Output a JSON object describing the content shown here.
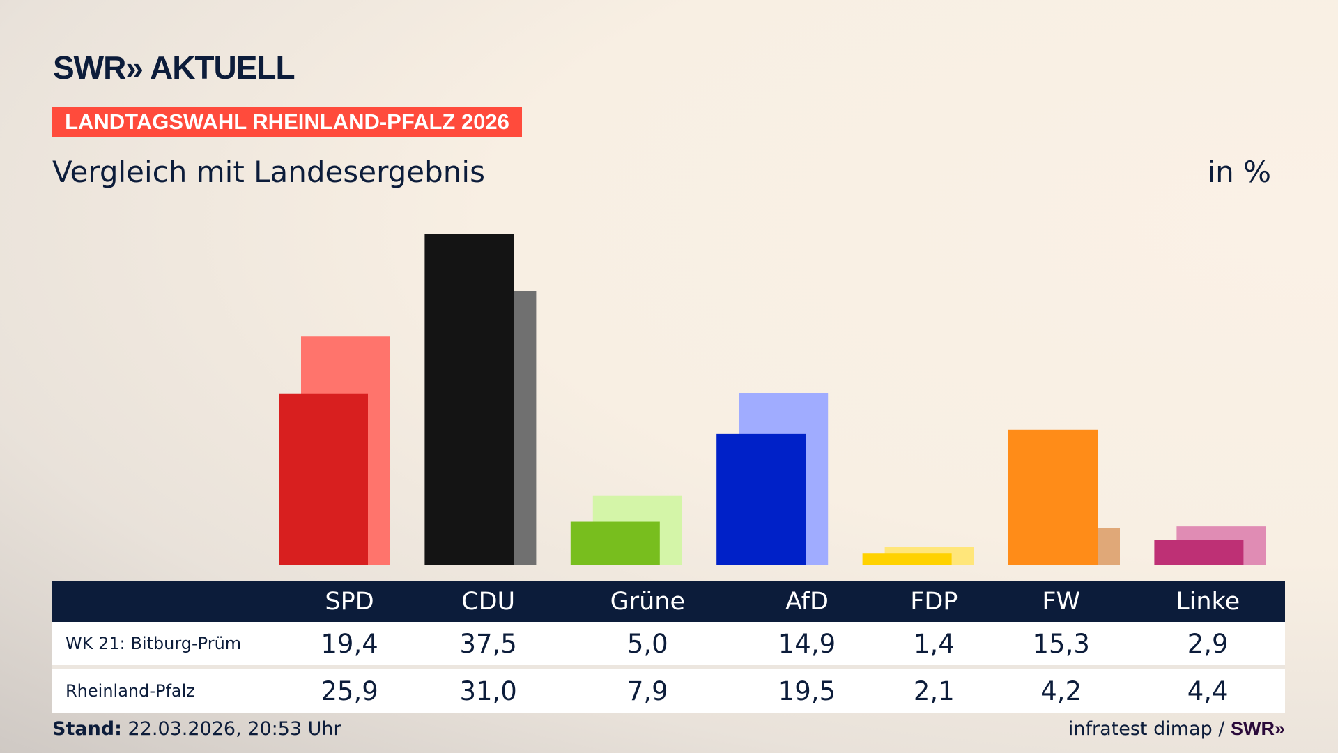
{
  "header": {
    "logo": "SWR» AKTUELL",
    "banner": "LANDTAGSWAHL RHEINLAND-PFALZ 2026",
    "subtitle": "Vergleich mit Landesergebnis",
    "unit": "in %"
  },
  "chart_data": {
    "type": "bar",
    "categories": [
      "SPD",
      "CDU",
      "Grüne",
      "AfD",
      "FDP",
      "FW",
      "Linke"
    ],
    "series": [
      {
        "name": "WK 21: Bitburg-Prüm",
        "values": [
          19.4,
          37.5,
          5.0,
          14.9,
          1.4,
          15.3,
          2.9
        ],
        "labels": [
          "19,4",
          "37,5",
          "5,0",
          "14,9",
          "1,4",
          "15,3",
          "2,9"
        ]
      },
      {
        "name": "Rheinland-Pfalz",
        "values": [
          25.9,
          31.0,
          7.9,
          19.5,
          2.1,
          4.2,
          4.4
        ],
        "labels": [
          "25,9",
          "31,0",
          "7,9",
          "19,5",
          "2,1",
          "4,2",
          "4,4"
        ]
      }
    ],
    "colors_front": [
      "#d81f1f",
      "#141414",
      "#78be1e",
      "#0021c8",
      "#ffd200",
      "#ff8c18",
      "#be3075"
    ],
    "colors_back": [
      "#ff746c",
      "#707070",
      "#d4f5a8",
      "#a0acff",
      "#ffe67a",
      "#e0a878",
      "#e08cb4"
    ],
    "ylim": [
      0,
      40
    ],
    "grid": false
  },
  "footer": {
    "stand_label": "Stand:",
    "stand_value": " 22.03.2026, 20:53 Uhr",
    "source": "infratest dimap / ",
    "source_logo": "SWR»"
  }
}
